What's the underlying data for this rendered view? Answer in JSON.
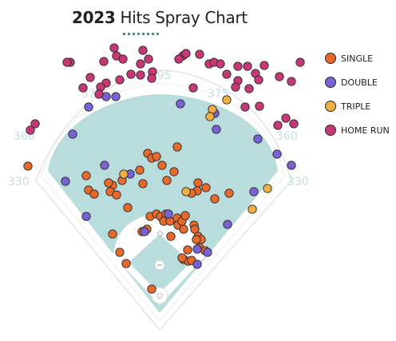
{
  "title": {
    "year": "2023",
    "text": "Hits Spray Chart"
  },
  "colors": {
    "single": "#e8692c",
    "double": "#7a62d6",
    "triple": "#f0b043",
    "home_run": "#c83877",
    "grass": "#b9dcdc",
    "infield": "#ffffff",
    "wall_text": "#c5dede",
    "title_underline": "#4a8c93"
  },
  "legend": [
    {
      "key": "single",
      "label": "SINGLE"
    },
    {
      "key": "double",
      "label": "DOUBLE"
    },
    {
      "key": "triple",
      "label": "TRIPLE"
    },
    {
      "key": "home_run",
      "label": "HOME RUN"
    }
  ],
  "wall_distances": [
    "330",
    "360",
    "375",
    "395",
    "375",
    "360",
    "330"
  ],
  "chart_data": {
    "type": "scatter",
    "title": "2023 Hits Spray Chart",
    "series": [
      {
        "name": "SINGLE",
        "points": [
          [
            35,
            208
          ],
          [
            108,
            220
          ],
          [
            111,
            238
          ],
          [
            118,
            243
          ],
          [
            141,
            232
          ],
          [
            136,
            229
          ],
          [
            138,
            240
          ],
          [
            146,
            244
          ],
          [
            153,
            226
          ],
          [
            175,
            213
          ],
          [
            179,
            230
          ],
          [
            185,
            192
          ],
          [
            190,
            198
          ],
          [
            196,
            196
          ],
          [
            203,
            207
          ],
          [
            209,
            226
          ],
          [
            218,
            215
          ],
          [
            222,
            184
          ],
          [
            248,
            229
          ],
          [
            247,
            239
          ],
          [
            240,
            242
          ],
          [
            258,
            235
          ],
          [
            269,
            249
          ],
          [
            287,
            242
          ],
          [
            160,
            260
          ],
          [
            178,
            290
          ],
          [
            184,
            287
          ],
          [
            141,
            293
          ],
          [
            150,
            316
          ],
          [
            158,
            330
          ],
          [
            188,
            271
          ],
          [
            196,
            268
          ],
          [
            201,
            271
          ],
          [
            208,
            268
          ],
          [
            205,
            277
          ],
          [
            213,
            277
          ],
          [
            222,
            273
          ],
          [
            223,
            282
          ],
          [
            230,
            287
          ],
          [
            228,
            277
          ],
          [
            232,
            270
          ],
          [
            214,
            296
          ],
          [
            243,
            282
          ],
          [
            244,
            287
          ],
          [
            248,
            296
          ],
          [
            252,
            300
          ],
          [
            246,
            300
          ],
          [
            250,
            310
          ],
          [
            257,
            314
          ],
          [
            235,
            313
          ],
          [
            230,
            325
          ],
          [
            236,
            327
          ],
          [
            240,
            326
          ],
          [
            228,
            323
          ],
          [
            190,
            362
          ]
        ]
      },
      {
        "name": "DOUBLE",
        "points": [
          [
            111,
            134
          ],
          [
            91,
            168
          ],
          [
            82,
            227
          ],
          [
            131,
            207
          ],
          [
            108,
            271
          ],
          [
            163,
            218
          ],
          [
            181,
            290
          ],
          [
            211,
            268
          ],
          [
            260,
            316
          ],
          [
            247,
            331
          ],
          [
            247,
            312
          ],
          [
            285,
            281
          ],
          [
            318,
            240
          ],
          [
            365,
            207
          ],
          [
            347,
            193
          ],
          [
            323,
            174
          ],
          [
            271,
            162
          ],
          [
            269,
            142
          ],
          [
            226,
            130
          ],
          [
            133,
            121
          ],
          [
            145,
            121
          ]
        ]
      },
      {
        "name": "TRIPLE",
        "points": [
          [
            155,
            218
          ],
          [
            233,
            240
          ],
          [
            266,
            137
          ],
          [
            284,
            125
          ],
          [
            263,
            146
          ],
          [
            335,
            236
          ],
          [
            316,
            262
          ]
        ]
      },
      {
        "name": "HOME RUN",
        "points": [
          [
            88,
            78
          ],
          [
            84,
            78
          ],
          [
            130,
            77
          ],
          [
            143,
            60
          ],
          [
            146,
            70
          ],
          [
            154,
            74
          ],
          [
            179,
            63
          ],
          [
            186,
            74
          ],
          [
            176,
            80
          ],
          [
            164,
            93
          ],
          [
            150,
            100
          ],
          [
            176,
            94
          ],
          [
            191,
            90
          ],
          [
            190,
            98
          ],
          [
            133,
            104
          ],
          [
            126,
            109
          ],
          [
            104,
            110
          ],
          [
            124,
            118
          ],
          [
            113,
            97
          ],
          [
            229,
            70
          ],
          [
            233,
            67
          ],
          [
            224,
            74
          ],
          [
            250,
            68
          ],
          [
            262,
            80
          ],
          [
            268,
            78
          ],
          [
            276,
            80
          ],
          [
            298,
            83
          ],
          [
            284,
            93
          ],
          [
            298,
            101
          ],
          [
            295,
            109
          ],
          [
            242,
            110
          ],
          [
            310,
            83
          ],
          [
            331,
            82
          ],
          [
            320,
            92
          ],
          [
            324,
            100
          ],
          [
            365,
            102
          ],
          [
            376,
            78
          ],
          [
            350,
            96
          ],
          [
            312,
            111
          ],
          [
            325,
            133
          ],
          [
            307,
            134
          ],
          [
            358,
            148
          ],
          [
            368,
            155
          ],
          [
            348,
            157
          ],
          [
            44,
            155
          ],
          [
            38,
            163
          ]
        ]
      }
    ],
    "legend_placement": "right"
  }
}
